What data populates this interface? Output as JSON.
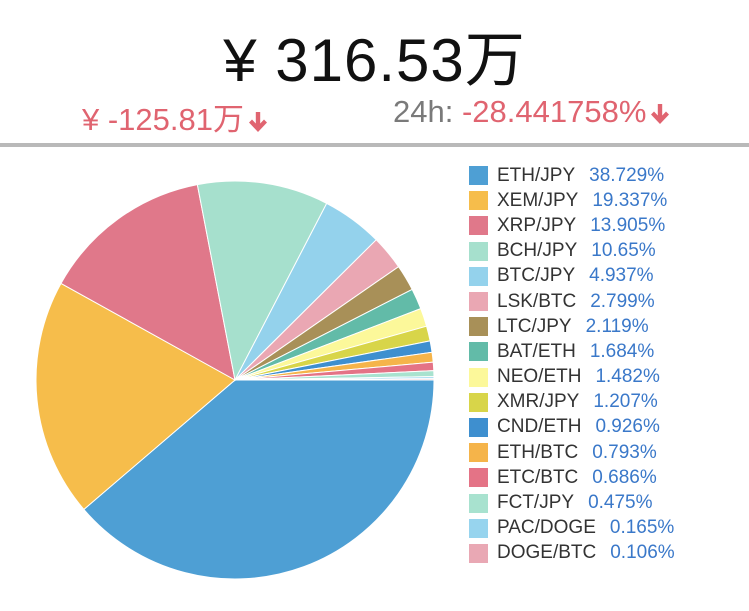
{
  "header": {
    "total": "¥ 316.53万",
    "change_abs": "¥ -125.81万",
    "change_24h_label": "24h:",
    "change_24h_pct": "-28.441758%",
    "down_color": "#e06470",
    "arrow_icon": "arrow-down-icon"
  },
  "chart_data": {
    "type": "pie",
    "title": "",
    "legend_position": "right",
    "slices": [
      {
        "label": "ETH/JPY",
        "value": 38.729,
        "pct_text": "38.729%",
        "color": "#4e9fd4"
      },
      {
        "label": "XEM/JPY",
        "value": 19.337,
        "pct_text": "19.337%",
        "color": "#f6bd4b"
      },
      {
        "label": "XRP/JPY",
        "value": 13.905,
        "pct_text": "13.905%",
        "color": "#e0788a"
      },
      {
        "label": "BCH/JPY",
        "value": 10.65,
        "pct_text": "10.65%",
        "color": "#a6e0cd"
      },
      {
        "label": "BTC/JPY",
        "value": 4.937,
        "pct_text": "4.937%",
        "color": "#94d2ec"
      },
      {
        "label": "LSK/BTC",
        "value": 2.799,
        "pct_text": "2.799%",
        "color": "#eaa7b3"
      },
      {
        "label": "LTC/JPY",
        "value": 2.119,
        "pct_text": "2.119%",
        "color": "#a89058"
      },
      {
        "label": "BAT/ETH",
        "value": 1.684,
        "pct_text": "1.684%",
        "color": "#62bba8"
      },
      {
        "label": "NEO/ETH",
        "value": 1.482,
        "pct_text": "1.482%",
        "color": "#fcf89a"
      },
      {
        "label": "XMR/JPY",
        "value": 1.207,
        "pct_text": "1.207%",
        "color": "#d8d549"
      },
      {
        "label": "CND/ETH",
        "value": 0.926,
        "pct_text": "0.926%",
        "color": "#3e8fcf"
      },
      {
        "label": "ETH/BTC",
        "value": 0.793,
        "pct_text": "0.793%",
        "color": "#f5b44a"
      },
      {
        "label": "ETC/BTC",
        "value": 0.686,
        "pct_text": "0.686%",
        "color": "#e47386"
      },
      {
        "label": "FCT/JPY",
        "value": 0.475,
        "pct_text": "0.475%",
        "color": "#a8e2cf"
      },
      {
        "label": "PAC/DOGE",
        "value": 0.165,
        "pct_text": "0.165%",
        "color": "#97d4ee"
      },
      {
        "label": "DOGE/BTC",
        "value": 0.106,
        "pct_text": "0.106%",
        "color": "#e9a8b4"
      }
    ]
  }
}
